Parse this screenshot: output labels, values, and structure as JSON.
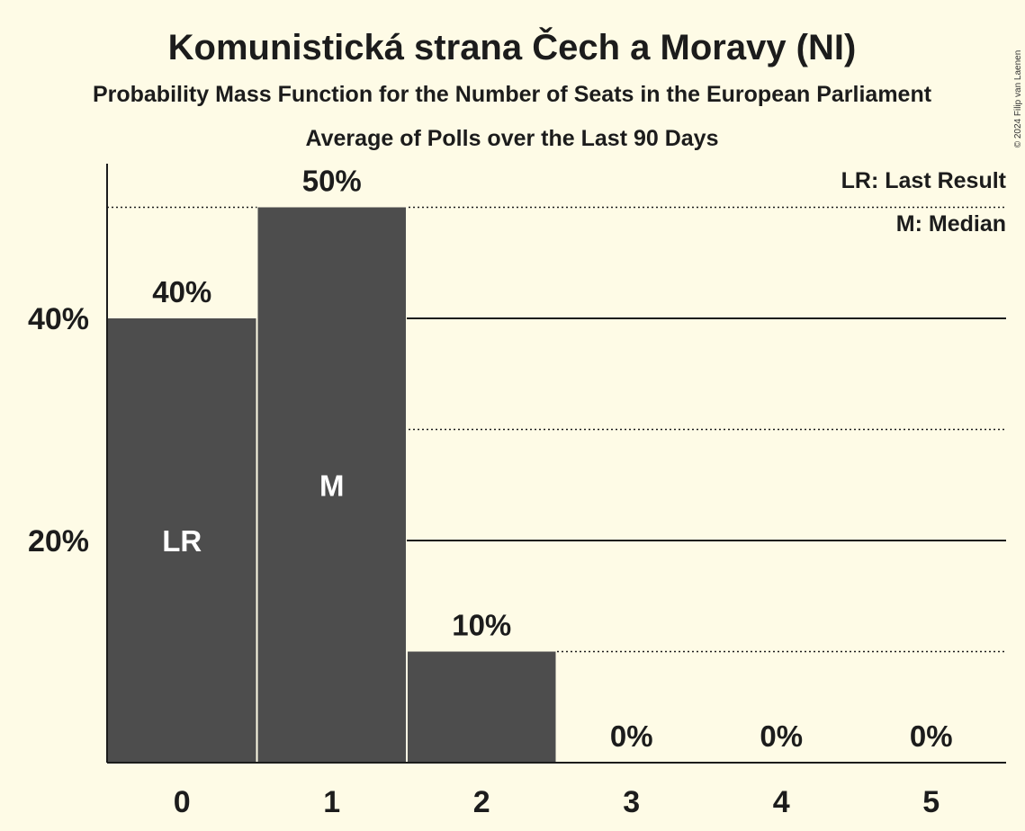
{
  "title": "Komunistická strana Čech a Moravy (NI)",
  "subtitle": "Probability Mass Function for the Number of Seats in the European Parliament",
  "subtitle2": "Average of Polls over the Last 90 Days",
  "copyright": "© 2024 Filip van Laenen",
  "legend": {
    "last_result": "LR: Last Result",
    "median": "M: Median"
  },
  "colors": {
    "background": "#fefbe6",
    "bar": "#4d4d4d",
    "text": "#1c1c1c"
  },
  "chart_data": {
    "type": "bar",
    "title": "Komunistická strana Čech a Moravy (NI)",
    "categories": [
      "0",
      "1",
      "2",
      "3",
      "4",
      "5"
    ],
    "values": [
      40,
      50,
      10,
      0,
      0,
      0
    ],
    "value_labels": [
      "40%",
      "50%",
      "10%",
      "0%",
      "0%",
      "0%"
    ],
    "bar_markers": [
      "LR",
      "M",
      "",
      "",
      "",
      ""
    ],
    "ylim": [
      0,
      54
    ],
    "yticks": [
      {
        "value": 20,
        "label": "20%"
      },
      {
        "value": 40,
        "label": "40%"
      }
    ],
    "solid_gridlines": [
      20,
      40
    ],
    "dotted_gridlines": [
      10,
      30,
      50
    ],
    "xlabel": "",
    "ylabel": "",
    "legend_position": "top-right"
  }
}
